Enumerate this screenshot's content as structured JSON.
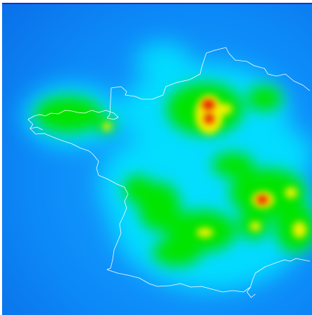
{
  "map": {
    "type": "heatmap",
    "region": "France",
    "colors": {
      "base": "#0a78f0",
      "low": "#00e5ff",
      "mid": "#00e600",
      "high": "#f0f000",
      "peak": "#e60000",
      "outline": "#ffffff",
      "frame_border": "#1530d8"
    },
    "hotspots": [
      {
        "name": "brittany-cluster",
        "intensity": 0.5
      },
      {
        "name": "north-cluster",
        "intensity": 0.5
      },
      {
        "name": "paris-peak",
        "intensity": 1.0
      },
      {
        "name": "paris-secondary-peak",
        "intensity": 0.9
      },
      {
        "name": "east-cluster",
        "intensity": 0.45
      },
      {
        "name": "lyon-peak",
        "intensity": 1.0
      },
      {
        "name": "alps-spot",
        "intensity": 0.8
      },
      {
        "name": "southwest-cluster",
        "intensity": 0.55
      },
      {
        "name": "south-cluster",
        "intensity": 0.5
      },
      {
        "name": "southeast-cluster",
        "intensity": 0.7
      },
      {
        "name": "central-cluster",
        "intensity": 0.4
      }
    ]
  }
}
